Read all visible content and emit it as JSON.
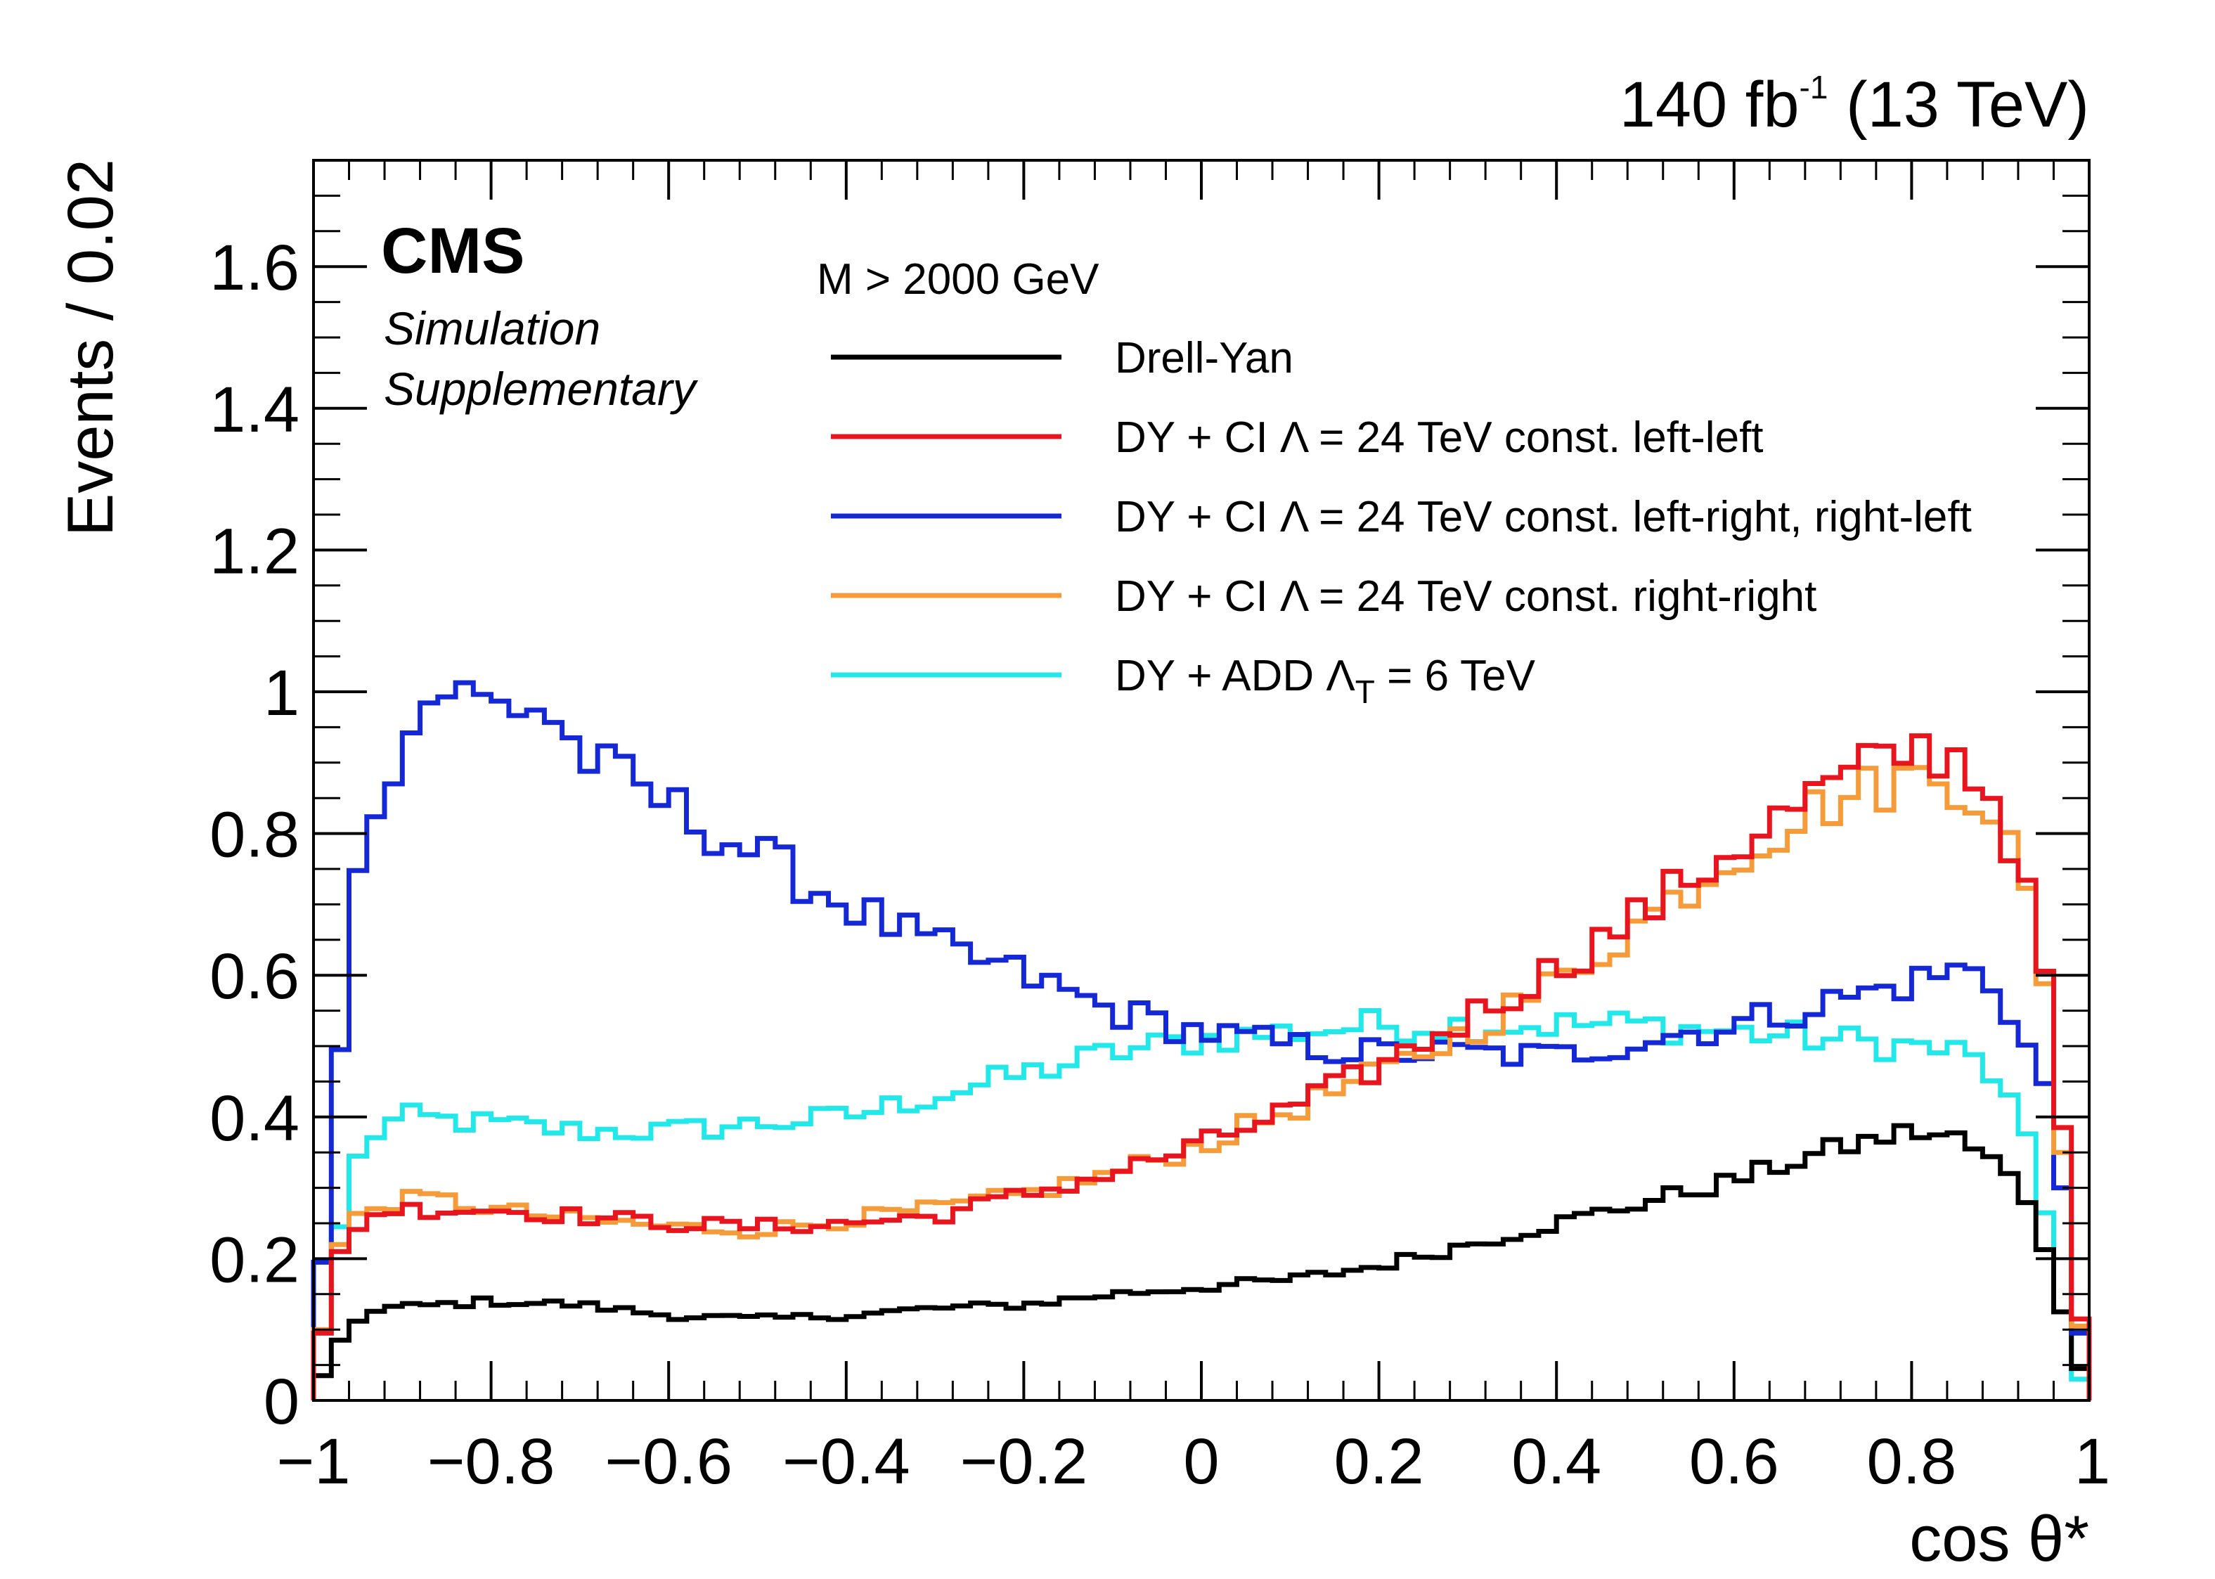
{
  "chart_data": {
    "type": "histogram",
    "lumi_text": {
      "main": "140 fb",
      "exp": "-1",
      "tail": " (13 TeV)"
    },
    "experiment": "CMS",
    "status": [
      "Simulation",
      "Supplementary"
    ],
    "selection": "M > 2000 GeV",
    "xlabel": "cos θ*",
    "ylabel": "Events / 0.02",
    "xlim": [
      -1,
      1
    ],
    "ylim": [
      0,
      1.75
    ],
    "bin_width": 0.02,
    "grid": false,
    "legend_position": "top-right",
    "x_ticks": [
      {
        "value": -1,
        "label": "−1"
      },
      {
        "value": -0.8,
        "label": "−0.8"
      },
      {
        "value": -0.6,
        "label": "−0.6"
      },
      {
        "value": -0.4,
        "label": "−0.4"
      },
      {
        "value": -0.2,
        "label": "−0.2"
      },
      {
        "value": 0,
        "label": "0"
      },
      {
        "value": 0.2,
        "label": "0.2"
      },
      {
        "value": 0.4,
        "label": "0.4"
      },
      {
        "value": 0.6,
        "label": "0.6"
      },
      {
        "value": 0.8,
        "label": "0.8"
      },
      {
        "value": 1,
        "label": "1"
      }
    ],
    "y_ticks": [
      {
        "value": 0,
        "label": "0"
      },
      {
        "value": 0.2,
        "label": "0.2"
      },
      {
        "value": 0.4,
        "label": "0.4"
      },
      {
        "value": 0.6,
        "label": "0.6"
      },
      {
        "value": 0.8,
        "label": "0.8"
      },
      {
        "value": 1,
        "label": "1"
      },
      {
        "value": 1.2,
        "label": "1.2"
      },
      {
        "value": 1.4,
        "label": "1.4"
      },
      {
        "value": 1.6,
        "label": "1.6"
      }
    ],
    "series": [
      {
        "name": "Drell-Yan",
        "color": "#000000",
        "knots": [
          [
            -1,
            0.01
          ],
          [
            -0.98,
            0.06
          ],
          [
            -0.96,
            0.11
          ],
          [
            -0.92,
            0.13
          ],
          [
            -0.8,
            0.14
          ],
          [
            -0.7,
            0.135
          ],
          [
            -0.6,
            0.12
          ],
          [
            -0.5,
            0.115
          ],
          [
            -0.4,
            0.12
          ],
          [
            -0.3,
            0.13
          ],
          [
            -0.2,
            0.135
          ],
          [
            -0.1,
            0.15
          ],
          [
            0,
            0.16
          ],
          [
            0.1,
            0.17
          ],
          [
            0.2,
            0.19
          ],
          [
            0.3,
            0.22
          ],
          [
            0.4,
            0.25
          ],
          [
            0.5,
            0.28
          ],
          [
            0.6,
            0.31
          ],
          [
            0.7,
            0.35
          ],
          [
            0.8,
            0.38
          ],
          [
            0.85,
            0.37
          ],
          [
            0.9,
            0.33
          ],
          [
            0.94,
            0.27
          ],
          [
            0.96,
            0.17
          ],
          [
            0.98,
            0.08
          ],
          [
            1,
            0.01
          ]
        ],
        "legend": {
          "pre": "Drell-Yan",
          "sym": "",
          "sub": "",
          "post": ""
        }
      },
      {
        "name": "DY + CI Λ = 24 TeV const. left-left",
        "color": "#e8141e",
        "knots": [
          [
            -1,
            0.01
          ],
          [
            -0.98,
            0.18
          ],
          [
            -0.96,
            0.24
          ],
          [
            -0.92,
            0.27
          ],
          [
            -0.8,
            0.27
          ],
          [
            -0.7,
            0.26
          ],
          [
            -0.6,
            0.25
          ],
          [
            -0.5,
            0.245
          ],
          [
            -0.4,
            0.25
          ],
          [
            -0.3,
            0.26
          ],
          [
            -0.2,
            0.29
          ],
          [
            -0.1,
            0.32
          ],
          [
            0,
            0.36
          ],
          [
            0.1,
            0.41
          ],
          [
            0.2,
            0.47
          ],
          [
            0.3,
            0.54
          ],
          [
            0.4,
            0.61
          ],
          [
            0.5,
            0.69
          ],
          [
            0.6,
            0.78
          ],
          [
            0.7,
            0.86
          ],
          [
            0.8,
            0.92
          ],
          [
            0.85,
            0.91
          ],
          [
            0.9,
            0.84
          ],
          [
            0.94,
            0.66
          ],
          [
            0.96,
            0.55
          ],
          [
            0.98,
            0.22
          ],
          [
            1,
            0.01
          ]
        ],
        "legend": {
          "pre": "DY + CI ",
          "sym": "Λ",
          "sub": "",
          "post": " = 24 TeV const. left-left"
        }
      },
      {
        "name": "DY + CI Λ = 24 TeV const. left-right, right-left",
        "color": "#1428d6",
        "knots": [
          [
            -1,
            0.02
          ],
          [
            -0.98,
            0.37
          ],
          [
            -0.96,
            0.62
          ],
          [
            -0.94,
            0.84
          ],
          [
            -0.9,
            0.92
          ],
          [
            -0.86,
            1.01
          ],
          [
            -0.8,
            0.98
          ],
          [
            -0.74,
            0.98
          ],
          [
            -0.7,
            0.91
          ],
          [
            -0.6,
            0.84
          ],
          [
            -0.5,
            0.77
          ],
          [
            -0.4,
            0.7
          ],
          [
            -0.3,
            0.64
          ],
          [
            -0.2,
            0.6
          ],
          [
            -0.1,
            0.55
          ],
          [
            0,
            0.52
          ],
          [
            0.1,
            0.5
          ],
          [
            0.2,
            0.49
          ],
          [
            0.3,
            0.49
          ],
          [
            0.4,
            0.485
          ],
          [
            0.5,
            0.51
          ],
          [
            0.6,
            0.53
          ],
          [
            0.7,
            0.56
          ],
          [
            0.8,
            0.59
          ],
          [
            0.86,
            0.61
          ],
          [
            0.9,
            0.58
          ],
          [
            0.94,
            0.47
          ],
          [
            0.96,
            0.42
          ],
          [
            0.98,
            0.18
          ],
          [
            1,
            0.01
          ]
        ],
        "legend": {
          "pre": "DY + CI ",
          "sym": "Λ",
          "sub": "",
          "post": " = 24 TeV const. left-right, right-left"
        }
      },
      {
        "name": "DY + CI Λ = 24 TeV const. right-right",
        "color": "#f59b3a",
        "knots": [
          [
            -1,
            0.01
          ],
          [
            -0.98,
            0.19
          ],
          [
            -0.96,
            0.25
          ],
          [
            -0.92,
            0.28
          ],
          [
            -0.86,
            0.285
          ],
          [
            -0.8,
            0.27
          ],
          [
            -0.7,
            0.255
          ],
          [
            -0.6,
            0.245
          ],
          [
            -0.5,
            0.24
          ],
          [
            -0.4,
            0.255
          ],
          [
            -0.3,
            0.27
          ],
          [
            -0.2,
            0.29
          ],
          [
            -0.1,
            0.32
          ],
          [
            0,
            0.36
          ],
          [
            0.1,
            0.41
          ],
          [
            0.2,
            0.46
          ],
          [
            0.3,
            0.52
          ],
          [
            0.4,
            0.59
          ],
          [
            0.5,
            0.68
          ],
          [
            0.6,
            0.77
          ],
          [
            0.7,
            0.84
          ],
          [
            0.8,
            0.88
          ],
          [
            0.85,
            0.875
          ],
          [
            0.9,
            0.83
          ],
          [
            0.94,
            0.66
          ],
          [
            0.96,
            0.5
          ],
          [
            0.98,
            0.2
          ],
          [
            1,
            0.01
          ]
        ],
        "legend": {
          "pre": "DY + CI ",
          "sym": "Λ",
          "sub": "",
          "post": " = 24 TeV const. right-right"
        }
      },
      {
        "name": "DY + ADD ΛT = 6 TeV",
        "color": "#22e8ea",
        "knots": [
          [
            -1,
            0.01
          ],
          [
            -0.98,
            0.18
          ],
          [
            -0.96,
            0.31
          ],
          [
            -0.94,
            0.37
          ],
          [
            -0.9,
            0.4
          ],
          [
            -0.8,
            0.39
          ],
          [
            -0.7,
            0.38
          ],
          [
            -0.6,
            0.38
          ],
          [
            -0.5,
            0.39
          ],
          [
            -0.4,
            0.4
          ],
          [
            -0.3,
            0.43
          ],
          [
            -0.2,
            0.46
          ],
          [
            -0.1,
            0.49
          ],
          [
            0,
            0.51
          ],
          [
            0.1,
            0.52
          ],
          [
            0.2,
            0.53
          ],
          [
            0.3,
            0.53
          ],
          [
            0.4,
            0.53
          ],
          [
            0.5,
            0.53
          ],
          [
            0.6,
            0.52
          ],
          [
            0.7,
            0.51
          ],
          [
            0.8,
            0.5
          ],
          [
            0.86,
            0.49
          ],
          [
            0.9,
            0.45
          ],
          [
            0.94,
            0.33
          ],
          [
            0.96,
            0.2
          ],
          [
            0.98,
            0.05
          ],
          [
            1,
            0.01
          ]
        ],
        "legend": {
          "pre": "DY + ADD ",
          "sym": "Λ",
          "sub": "T",
          "post": " = 6 TeV"
        }
      }
    ]
  }
}
